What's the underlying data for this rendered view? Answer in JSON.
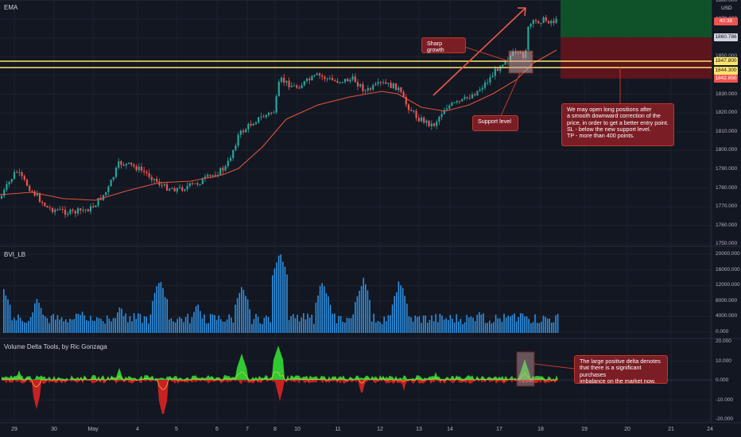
{
  "panes": {
    "main_label": "EMA",
    "bvi_label": "BVI_LB",
    "delta_label": "Volume Delta Tools, by Ric Gonzaga"
  },
  "currency": "USD",
  "price_axis": [
    "1880.000",
    "1870.000",
    "1860.000",
    "1850.000",
    "1840.000",
    "1830.000",
    "1820.000",
    "1810.000",
    "1800.000",
    "1790.000",
    "1780.000",
    "1770.000",
    "1760.000",
    "1750.000"
  ],
  "bvi_axis": [
    "20000.000",
    "16000.000",
    "12000.000",
    "8000.000",
    "4000.000",
    "0.000"
  ],
  "delta_axis": [
    "20.000",
    "10.000",
    "0.000",
    "-10.000",
    "-20.000"
  ],
  "date_axis": [
    "29",
    "30",
    "May",
    "4",
    "5",
    "6",
    "7",
    "8",
    "10",
    "11",
    "12",
    "13",
    "14",
    "17",
    "18",
    "19",
    "20",
    "21",
    "24"
  ],
  "price_tags": {
    "current": "40:38",
    "tp": "1860.786",
    "support_upper": "1847.800",
    "support_lower": "1844.300",
    "sl": "1842.850"
  },
  "annotations": {
    "sharp_growth": "Sharp growth",
    "support_level": "Support level",
    "trade_idea": [
      "We may open long positions after",
      "a smooth downward correction of the",
      "price, in order to get a better entry point.",
      "SL - below the new support level.",
      "TP - more than 400 points."
    ],
    "delta_note": [
      "The large positive delta denotes",
      "that there is a significant purchases",
      "imbalance on the market now."
    ]
  },
  "colors": {
    "background": "#131722",
    "bull": "#26a69a",
    "bear": "#ef5350",
    "ema": "#e0533c",
    "support": "#ffe36b",
    "tp_zone": "#0f5c2a",
    "sl_zone": "#6a141c",
    "bvi": "#2f8fe0",
    "delta_green": "#33dd33",
    "delta_red": "#dd2222",
    "annotation": "#7b1d24"
  }
}
